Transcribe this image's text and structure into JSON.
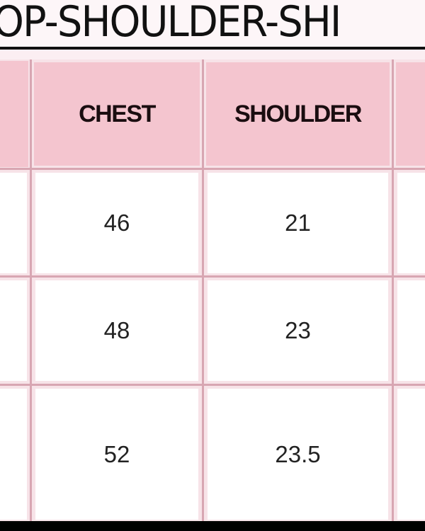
{
  "title": "OP-SHOULDER-SHI",
  "table": {
    "headers": [
      "",
      "CHEST",
      "SHOULDER",
      ""
    ],
    "rows": [
      [
        "",
        "46",
        "21",
        ""
      ],
      [
        "",
        "48",
        "23",
        ""
      ],
      [
        "",
        "52",
        "23.5",
        ""
      ]
    ]
  },
  "colors": {
    "header_bg": "#f4c5cf",
    "grid_line": "#d8a6b2",
    "cell_bg": "#ffffff"
  }
}
